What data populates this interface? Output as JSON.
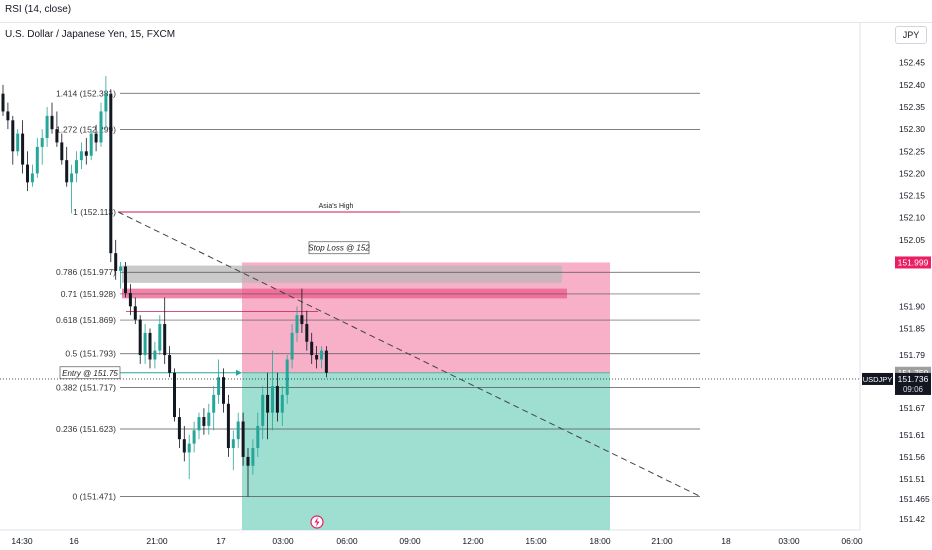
{
  "header": {
    "indicator": "RSI (14, close)",
    "symbol": "U.S. Dollar / Japanese Yen, 15, FXCM",
    "currency": "JPY"
  },
  "chart_data": {
    "type": "candlestick",
    "ylim": [
      151.395,
      152.49
    ],
    "price_ticks": [
      152.45,
      152.4,
      152.35,
      152.3,
      152.25,
      152.2,
      152.15,
      152.1,
      152.05,
      151.9,
      151.85,
      151.79,
      151.67,
      151.61,
      151.56,
      151.51,
      151.465,
      151.42
    ],
    "time_ticks": [
      "14:30",
      "16",
      "21:00",
      "17",
      "03:00",
      "06:00",
      "09:00",
      "12:00",
      "15:00",
      "18:00",
      "21:00",
      "18",
      "03:00",
      "06:00"
    ],
    "fib_levels": [
      {
        "label": "1.414 (152.381)",
        "price": 152.381
      },
      {
        "label": "1.272 (152.299)",
        "price": 152.299
      },
      {
        "label": "1 (152.113)",
        "price": 152.113
      },
      {
        "label": "0.786 (151.977)",
        "price": 151.977
      },
      {
        "label": "0.71 (151.928)",
        "price": 151.928
      },
      {
        "label": "0.618 (151.869)",
        "price": 151.869
      },
      {
        "label": "0.5 (151.793)",
        "price": 151.793
      },
      {
        "label": "0.382 (151.717)",
        "price": 151.717
      },
      {
        "label": "0.236 (151.623)",
        "price": 151.623
      },
      {
        "label": "0 (151.471)",
        "price": 151.471
      }
    ],
    "position": {
      "entry": 151.75,
      "stop": 151.999,
      "target": 151.395
    },
    "annotations": {
      "asia_high": "Asia's High",
      "stop_loss": "Stop Loss @ 152",
      "entry": "Entry @ 151.75"
    },
    "price_labels": {
      "stop": "151.999",
      "entry": "151.750",
      "current": "151.736",
      "ticker": "USDJPY",
      "countdown": "09:06"
    },
    "current_price": 151.736,
    "candles": [
      [
        152.38,
        152.4,
        152.33,
        152.34
      ],
      [
        152.34,
        152.36,
        152.3,
        152.32
      ],
      [
        152.32,
        152.33,
        152.22,
        152.25
      ],
      [
        152.25,
        152.3,
        152.24,
        152.29
      ],
      [
        152.29,
        152.32,
        152.2,
        152.22
      ],
      [
        152.22,
        152.25,
        152.16,
        152.18
      ],
      [
        152.18,
        152.22,
        152.17,
        152.2
      ],
      [
        152.2,
        152.28,
        152.19,
        152.26
      ],
      [
        152.26,
        152.3,
        152.22,
        152.28
      ],
      [
        152.28,
        152.35,
        152.26,
        152.33
      ],
      [
        152.33,
        152.36,
        152.29,
        152.3
      ],
      [
        152.3,
        152.34,
        152.26,
        152.27
      ],
      [
        152.27,
        152.29,
        152.22,
        152.23
      ],
      [
        152.23,
        152.26,
        152.17,
        152.18
      ],
      [
        152.18,
        152.22,
        152.11,
        152.2
      ],
      [
        152.2,
        152.25,
        152.18,
        152.23
      ],
      [
        152.23,
        152.27,
        152.21,
        152.25
      ],
      [
        152.25,
        152.28,
        152.22,
        152.24
      ],
      [
        152.24,
        152.3,
        152.23,
        152.29
      ],
      [
        152.29,
        152.31,
        152.25,
        152.27
      ],
      [
        152.27,
        152.36,
        152.26,
        152.34
      ],
      [
        152.34,
        152.42,
        152.3,
        152.38
      ],
      [
        152.38,
        152.39,
        152.0,
        152.02
      ],
      [
        152.02,
        152.05,
        151.96,
        151.98
      ],
      [
        151.98,
        152.0,
        151.94,
        151.99
      ],
      [
        151.99,
        152.0,
        151.92,
        151.93
      ],
      [
        151.93,
        151.95,
        151.88,
        151.9
      ],
      [
        151.9,
        151.92,
        151.86,
        151.87
      ],
      [
        151.87,
        151.88,
        151.77,
        151.79
      ],
      [
        151.79,
        151.86,
        151.77,
        151.84
      ],
      [
        151.84,
        151.85,
        151.76,
        151.78
      ],
      [
        151.78,
        151.82,
        151.76,
        151.8
      ],
      [
        151.8,
        151.88,
        151.79,
        151.86
      ],
      [
        151.86,
        151.92,
        151.77,
        151.79
      ],
      [
        151.79,
        151.81,
        151.74,
        151.75
      ],
      [
        151.75,
        151.76,
        151.64,
        151.65
      ],
      [
        151.65,
        151.67,
        151.58,
        151.6
      ],
      [
        151.6,
        151.63,
        151.55,
        151.57
      ],
      [
        151.57,
        151.61,
        151.51,
        151.59
      ],
      [
        151.59,
        151.64,
        151.57,
        151.62
      ],
      [
        151.62,
        151.66,
        151.6,
        151.65
      ],
      [
        151.65,
        151.67,
        151.61,
        151.63
      ],
      [
        151.63,
        151.68,
        151.61,
        151.66
      ],
      [
        151.66,
        151.72,
        151.62,
        151.7
      ],
      [
        151.7,
        151.78,
        151.68,
        151.74
      ],
      [
        151.74,
        151.76,
        151.66,
        151.68
      ],
      [
        151.68,
        151.7,
        151.56,
        151.58
      ],
      [
        151.58,
        151.62,
        151.53,
        151.6
      ],
      [
        151.6,
        151.66,
        151.58,
        151.64
      ],
      [
        151.64,
        151.66,
        151.54,
        151.56
      ],
      [
        151.56,
        151.58,
        151.47,
        151.54
      ],
      [
        151.54,
        151.6,
        151.52,
        151.58
      ],
      [
        151.58,
        151.66,
        151.56,
        151.63
      ],
      [
        151.63,
        151.72,
        151.6,
        151.7
      ],
      [
        151.7,
        151.75,
        151.6,
        151.66
      ],
      [
        151.66,
        151.8,
        151.62,
        151.72
      ],
      [
        151.72,
        151.75,
        151.64,
        151.66
      ],
      [
        151.66,
        151.72,
        151.63,
        151.7
      ],
      [
        151.7,
        151.79,
        151.68,
        151.78
      ],
      [
        151.78,
        151.86,
        151.76,
        151.84
      ],
      [
        151.84,
        151.9,
        151.82,
        151.88
      ],
      [
        151.88,
        151.94,
        151.84,
        151.86
      ],
      [
        151.86,
        151.89,
        151.8,
        151.82
      ],
      [
        151.82,
        151.84,
        151.77,
        151.79
      ],
      [
        151.79,
        151.81,
        151.76,
        151.78
      ],
      [
        151.78,
        151.81,
        151.76,
        151.8
      ],
      [
        151.8,
        151.81,
        151.74,
        151.75
      ]
    ]
  }
}
